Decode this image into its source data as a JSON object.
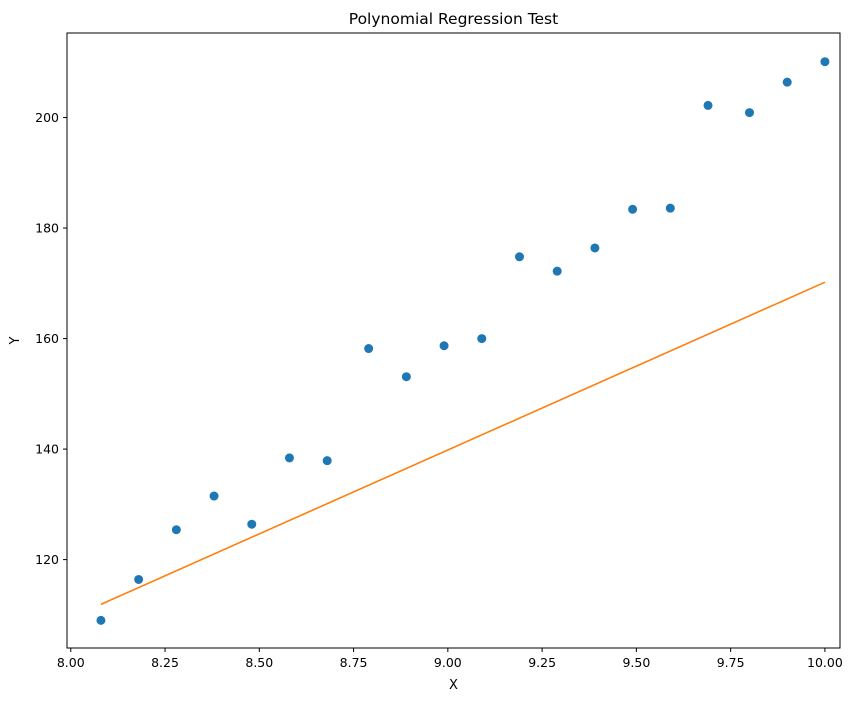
{
  "chart_data": {
    "type": "scatter",
    "title": "Polynomial Regression Test",
    "xlabel": "X",
    "ylabel": "Y",
    "xlim": [
      7.99,
      10.04
    ],
    "ylim": [
      104,
      215.3
    ],
    "xticks": [
      8.0,
      8.25,
      8.5,
      8.75,
      9.0,
      9.25,
      9.5,
      9.75,
      10.0
    ],
    "xtick_labels": [
      "8.00",
      "8.25",
      "8.50",
      "8.75",
      "9.00",
      "9.25",
      "9.50",
      "9.75",
      "10.00"
    ],
    "yticks": [
      120,
      140,
      160,
      180,
      200
    ],
    "ytick_labels": [
      "120",
      "140",
      "160",
      "180",
      "200"
    ],
    "grid": false,
    "series": [
      {
        "kind": "scatter",
        "color": "#1f77b4",
        "points": [
          [
            8.08,
            109.0
          ],
          [
            8.18,
            116.4
          ],
          [
            8.28,
            125.4
          ],
          [
            8.38,
            131.5
          ],
          [
            8.48,
            126.4
          ],
          [
            8.58,
            138.4
          ],
          [
            8.68,
            137.9
          ],
          [
            8.79,
            158.2
          ],
          [
            8.89,
            153.1
          ],
          [
            8.99,
            158.7
          ],
          [
            9.09,
            160.0
          ],
          [
            9.19,
            174.8
          ],
          [
            9.29,
            172.2
          ],
          [
            9.39,
            176.4
          ],
          [
            9.49,
            183.4
          ],
          [
            9.59,
            183.6
          ],
          [
            9.69,
            202.2
          ],
          [
            9.8,
            200.9
          ],
          [
            9.9,
            206.4
          ],
          [
            10.0,
            210.1
          ]
        ]
      },
      {
        "kind": "line",
        "color": "#ff7f0e",
        "points": [
          [
            8.08,
            111.9
          ],
          [
            10.0,
            170.2
          ]
        ]
      }
    ]
  }
}
